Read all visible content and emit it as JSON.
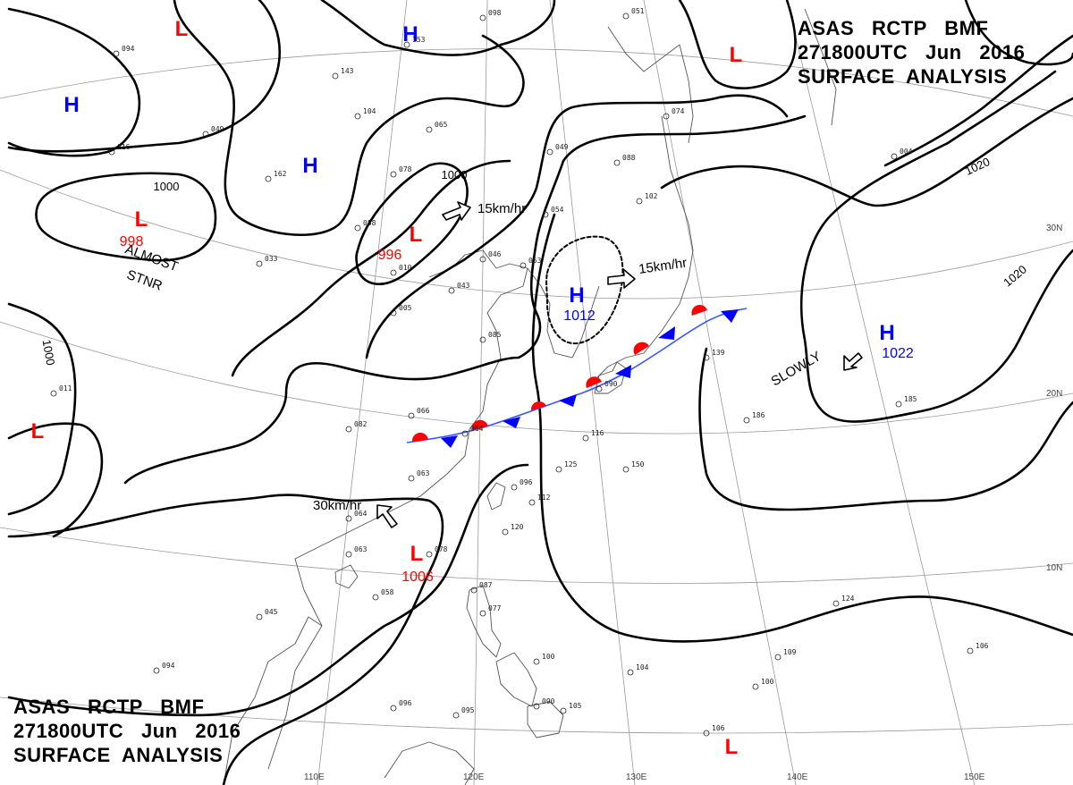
{
  "title": {
    "line1": "ASAS   RCTP   BMF",
    "line2": "271800UTC   Jun   2016",
    "line3": "SURFACE  ANALYSIS"
  },
  "colors": {
    "low": "#ff0000",
    "high": "#0000ff",
    "isobar": "#000000",
    "coast": "#444444",
    "warm_front": "#ff0000",
    "cold_front": "#0000ff"
  },
  "pressure_systems": [
    {
      "name": "low-nw-corner",
      "type": "L",
      "value": ""
    },
    {
      "name": "high-upper-left",
      "type": "H",
      "value": ""
    },
    {
      "name": "high-upper-center",
      "type": "H",
      "value": ""
    },
    {
      "name": "high-mongolia",
      "type": "H",
      "value": ""
    },
    {
      "name": "low-top-right",
      "type": "L",
      "value": ""
    },
    {
      "name": "low-998",
      "type": "L",
      "value": "998",
      "note": "ALMOST\nSTNR"
    },
    {
      "name": "low-996",
      "type": "L",
      "value": "996"
    },
    {
      "name": "high-1012",
      "type": "H",
      "value": "1012"
    },
    {
      "name": "high-1022",
      "type": "H",
      "value": "1022"
    },
    {
      "name": "low-west-edge",
      "type": "L",
      "value": ""
    },
    {
      "name": "low-1006",
      "type": "L",
      "value": "1006"
    },
    {
      "name": "low-bottom-right",
      "type": "L",
      "value": ""
    }
  ],
  "motion_labels": [
    {
      "name": "motion-996",
      "text": "15km/hr"
    },
    {
      "name": "motion-1012",
      "text": "15km/hr"
    },
    {
      "name": "motion-1006",
      "text": "30km/hr"
    },
    {
      "name": "motion-1022",
      "text": "SLOWLY"
    }
  ],
  "almost_stnr": [
    "ALMOST",
    "STNR"
  ],
  "isobar_labels": [
    "1000",
    "1000",
    "1000",
    "1020",
    "1020"
  ],
  "latitude_labels": [
    "30N",
    "20N",
    "10N"
  ],
  "longitude_labels": [
    "110E",
    "120E",
    "130E",
    "140E",
    "150E"
  ],
  "station_samples": [
    "098",
    "051",
    "074",
    "065",
    "049",
    "088",
    "102",
    "054",
    "043",
    "046",
    "053",
    "085",
    "066",
    "064",
    "082",
    "063",
    "064",
    "090",
    "116",
    "125",
    "150",
    "096",
    "112",
    "120",
    "078",
    "063",
    "045",
    "058",
    "087",
    "077",
    "100",
    "104",
    "096",
    "095",
    "090",
    "105",
    "106",
    "186",
    "185",
    "124",
    "109",
    "106",
    "100",
    "094",
    "011",
    "094",
    "116",
    "162",
    "078",
    "058",
    "010",
    "005",
    "033",
    "153",
    "143",
    "104",
    "049",
    "139",
    "004"
  ]
}
